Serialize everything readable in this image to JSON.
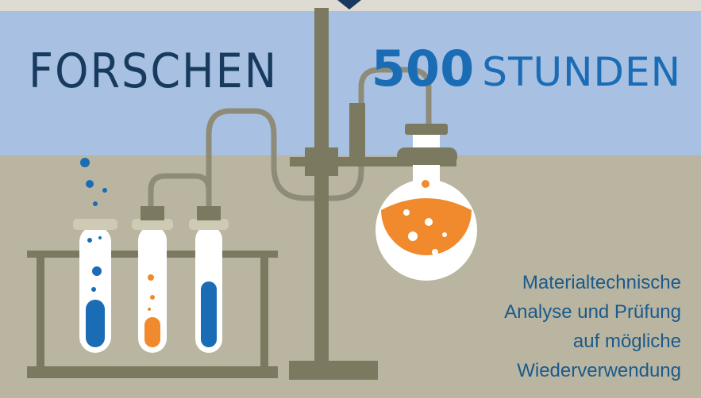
{
  "header": {
    "title": "FORSCHEN",
    "hours": "500",
    "unit": "STUNDEN"
  },
  "description": [
    "Materialtechnische",
    "Analyse und Prüfung",
    "auf mögliche",
    "Wiederverwendung"
  ]
}
